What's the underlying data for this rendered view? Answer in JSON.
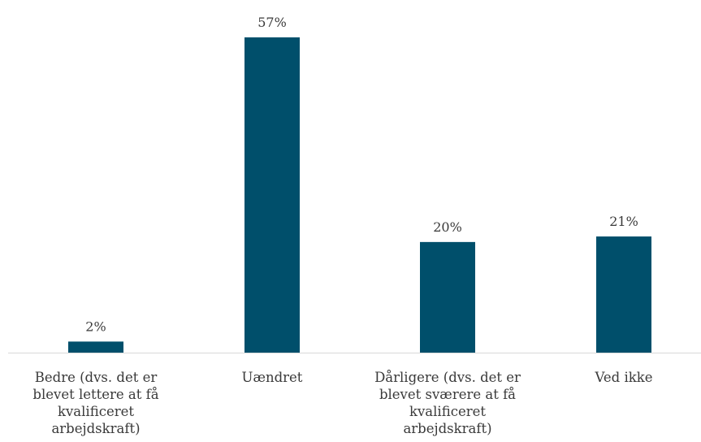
{
  "chart_data": {
    "type": "bar",
    "categories": [
      [
        "Bedre (dvs. det er",
        "blevet lettere at få",
        "kvalificeret",
        "arbejdskraft)"
      ],
      [
        "Uændret"
      ],
      [
        "Dårligere (dvs. det er",
        "blevet sværere at få",
        "kvalificeret",
        "arbejdskraft)"
      ],
      [
        "Ved ikke"
      ]
    ],
    "values": [
      2,
      57,
      20,
      21
    ],
    "value_labels": [
      "2%",
      "57%",
      "20%",
      "21%"
    ],
    "ylim": [
      0,
      57
    ],
    "grid": false,
    "legend": "none",
    "bar_color": "#004f6b"
  }
}
